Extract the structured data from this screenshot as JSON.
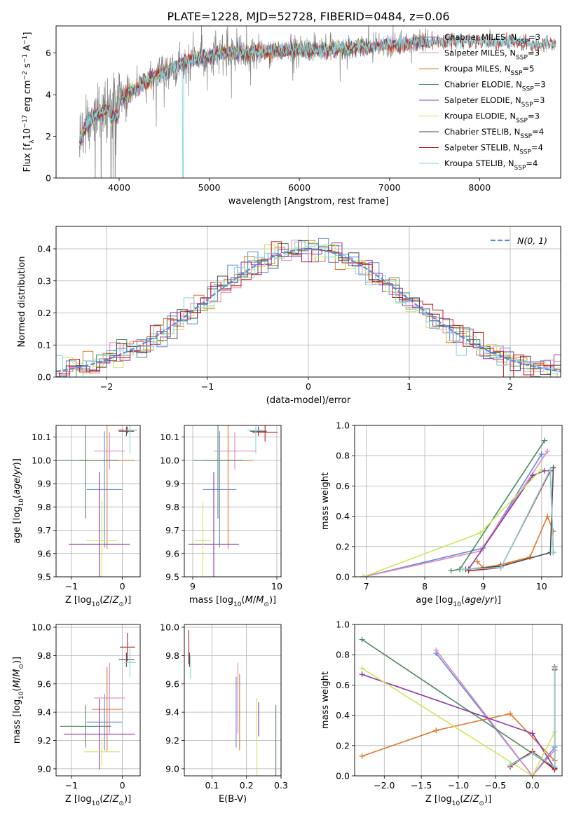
{
  "figure": {
    "title": "PLATE=1228, MJD=52728, FIBERID=0484, z=0.06"
  },
  "colors": {
    "Chabrier MILES": "#5b8bd8",
    "Salpeter MILES": "#e684bf",
    "Kroupa MILES": "#e0762a",
    "Chabrier ELODIE": "#4e8a5e",
    "Salpeter ELODIE": "#8e36a8",
    "Kroupa ELODIE": "#cfe65c",
    "Chabrier STELIB": "#4a4a4a",
    "Salpeter STELIB": "#c41818",
    "Kroupa STELIB": "#86d4dc",
    "data": "#808080",
    "normal": "#5b8bd8"
  },
  "chart_data": [
    {
      "id": "spectrum",
      "type": "line",
      "xlabel": "wavelength [Angstrom, rest frame]",
      "ylabel": "Flux [f_λ 10^-17 erg cm^-2 s^-1 A^-1]",
      "xlim": [
        3300,
        8900
      ],
      "ylim": [
        0,
        7.3
      ],
      "xticks": [
        4000,
        5000,
        6000,
        7000,
        8000
      ],
      "yticks": [
        0,
        2,
        4,
        6
      ],
      "grid": false,
      "legend_position": "right",
      "legend": [
        {
          "model": "Chabrier MILES",
          "nssp": "3"
        },
        {
          "model": "Salpeter MILES",
          "nssp": "3"
        },
        {
          "model": "Kroupa MILES",
          "nssp": "5"
        },
        {
          "model": "Chabrier ELODIE",
          "nssp": "3"
        },
        {
          "model": "Salpeter ELODIE",
          "nssp": "3"
        },
        {
          "model": "Kroupa ELODIE",
          "nssp": "3"
        },
        {
          "model": "Chabrier STELIB",
          "nssp": "4"
        },
        {
          "model": "Salpeter STELIB",
          "nssp": "4"
        },
        {
          "model": "Kroupa STELIB",
          "nssp": "4"
        }
      ],
      "continuum": {
        "x": [
          3560,
          3650,
          3750,
          3850,
          3950,
          4050,
          4150,
          4300,
          4500,
          4700,
          4900,
          5100,
          5300,
          5500,
          5700,
          5900,
          6100,
          6300,
          6500,
          6700,
          6900,
          7100,
          7300,
          7500,
          7700,
          8000,
          8300,
          8600,
          8850
        ],
        "y": [
          1.8,
          2.6,
          3.1,
          3.2,
          3.5,
          3.9,
          4.2,
          4.6,
          5.1,
          5.5,
          5.8,
          5.95,
          6.0,
          6.05,
          6.1,
          6.15,
          6.1,
          6.15,
          6.2,
          6.3,
          6.35,
          6.4,
          6.5,
          6.55,
          6.6,
          6.55,
          6.5,
          6.45,
          6.4
        ]
      }
    },
    {
      "id": "residuals",
      "type": "histogram",
      "xlabel": "(data-model)/error",
      "ylabel": "Normed distribution",
      "xlim": [
        -2.5,
        2.5
      ],
      "ylim": [
        0,
        0.47
      ],
      "xticks": [
        -2,
        -1,
        0,
        1,
        2
      ],
      "yticks": [
        0.0,
        0.1,
        0.2,
        0.3,
        0.4
      ],
      "grid": true,
      "legend_position": "top-right",
      "legend": "N(0,1)",
      "bin_width": 0.1
    },
    {
      "id": "age-vs-Z",
      "type": "errorbar",
      "xlabel": "Z [log10(Z/Z⊙)]",
      "ylabel": "age [log10(age/yr)]",
      "xlim": [
        -1.3,
        0.35
      ],
      "ylim": [
        9.5,
        10.15
      ],
      "xticks": [
        -1,
        0
      ],
      "yticks": [
        9.5,
        9.6,
        9.7,
        9.8,
        9.9,
        10.0,
        10.1
      ],
      "grid": true,
      "points": [
        {
          "model": "Chabrier MILES",
          "x": -0.35,
          "xerr": 0.35,
          "y": 9.875,
          "yerr": 0.25
        },
        {
          "model": "Salpeter MILES",
          "x": -0.25,
          "xerr": 0.3,
          "y": 10.04,
          "yerr": 0.08
        },
        {
          "model": "Kroupa MILES",
          "x": -0.3,
          "xerr": 0.55,
          "y": 10.0,
          "yerr": 0.38
        },
        {
          "model": "Chabrier ELODIE",
          "x": -0.72,
          "xerr": 0.65,
          "y": 10.0,
          "yerr": 0.25
        },
        {
          "model": "Salpeter ELODIE",
          "x": -0.45,
          "xerr": 0.6,
          "y": 9.64,
          "yerr": 0.31
        },
        {
          "model": "Kroupa ELODIE",
          "x": -0.4,
          "xerr": 0.3,
          "y": 9.655,
          "yerr": 0.17
        },
        {
          "model": "Chabrier STELIB",
          "x": 0.08,
          "xerr": 0.15,
          "y": 10.125,
          "yerr": 0.02
        },
        {
          "model": "Salpeter STELIB",
          "x": 0.1,
          "xerr": 0.18,
          "y": 10.13,
          "yerr": 0.015
        },
        {
          "model": "Kroupa STELIB",
          "x": 0.15,
          "xerr": 0.12,
          "y": 10.13,
          "yerr": 0.1
        }
      ]
    },
    {
      "id": "age-vs-mass",
      "type": "errorbar",
      "xlabel": "mass [log10(M/M⊙)]",
      "ylabel": "",
      "xlim": [
        8.9,
        10.05
      ],
      "ylim": [
        9.5,
        10.15
      ],
      "xticks": [
        9,
        10
      ],
      "yticks": [
        9.5,
        9.6,
        9.7,
        9.8,
        9.9,
        10.0,
        10.1
      ],
      "grid": true,
      "points": [
        {
          "model": "Chabrier MILES",
          "x": 9.32,
          "xerr": 0.2,
          "y": 9.875,
          "yerr": 0.25
        },
        {
          "model": "Salpeter MILES",
          "x": 9.5,
          "xerr": 0.25,
          "y": 10.04,
          "yerr": 0.08
        },
        {
          "model": "Kroupa MILES",
          "x": 9.42,
          "xerr": 0.3,
          "y": 10.0,
          "yerr": 0.38
        },
        {
          "model": "Chabrier ELODIE",
          "x": 9.3,
          "xerr": 0.3,
          "y": 10.0,
          "yerr": 0.25
        },
        {
          "model": "Salpeter ELODIE",
          "x": 9.25,
          "xerr": 0.3,
          "y": 9.64,
          "yerr": 0.31
        },
        {
          "model": "Kroupa ELODIE",
          "x": 9.12,
          "xerr": 0.1,
          "y": 9.655,
          "yerr": 0.17
        },
        {
          "model": "Chabrier STELIB",
          "x": 9.78,
          "xerr": 0.1,
          "y": 10.125,
          "yerr": 0.02
        },
        {
          "model": "Salpeter STELIB",
          "x": 9.86,
          "xerr": 0.15,
          "y": 10.12,
          "yerr": 0.04
        },
        {
          "model": "Kroupa STELIB",
          "x": 9.75,
          "xerr": 0.1,
          "y": 10.13,
          "yerr": 0.1
        }
      ]
    },
    {
      "id": "weight-vs-age",
      "type": "line",
      "xlabel": "age [log10(age/yr)]",
      "ylabel": "mass weight",
      "xlim": [
        6.8,
        10.35
      ],
      "ylim": [
        0,
        1.0
      ],
      "xticks": [
        7,
        8,
        9,
        10
      ],
      "yticks": [
        0.0,
        0.2,
        0.4,
        0.6,
        0.8,
        1.0
      ],
      "grid": true,
      "series": [
        {
          "model": "Chabrier MILES",
          "x": [
            6.95,
            9.0,
            10.0
          ],
          "y": [
            0.0,
            0.19,
            0.81
          ]
        },
        {
          "model": "Salpeter MILES",
          "x": [
            6.95,
            8.95,
            10.1
          ],
          "y": [
            0.0,
            0.17,
            0.83
          ]
        },
        {
          "model": "Kroupa MILES",
          "x": [
            8.9,
            9.0,
            9.3,
            9.8,
            10.1,
            10.2
          ],
          "y": [
            0.1,
            0.06,
            0.08,
            0.13,
            0.4,
            0.3
          ]
        },
        {
          "model": "Chabrier ELODIE",
          "x": [
            8.45,
            8.6,
            10.05
          ],
          "y": [
            0.04,
            0.05,
            0.9
          ]
        },
        {
          "model": "Salpeter ELODIE",
          "x": [
            8.75,
            9.85,
            10.05
          ],
          "y": [
            0.05,
            0.67,
            0.7
          ]
        },
        {
          "model": "Kroupa ELODIE",
          "x": [
            6.95,
            8.95,
            10.0
          ],
          "y": [
            0.0,
            0.29,
            0.71
          ]
        },
        {
          "model": "Chabrier STELIB",
          "x": [
            8.7,
            9.3,
            10.15,
            10.2
          ],
          "y": [
            0.05,
            0.07,
            0.16,
            0.72
          ]
        },
        {
          "model": "Salpeter STELIB",
          "x": [
            8.75,
            9.3,
            10.15,
            10.2
          ],
          "y": [
            0.04,
            0.06,
            0.7,
            0.16
          ]
        },
        {
          "model": "Kroupa STELIB",
          "x": [
            8.65,
            9.3,
            10.15,
            10.2
          ],
          "y": [
            0.05,
            0.06,
            0.71,
            0.16
          ]
        }
      ]
    },
    {
      "id": "mass-vs-Z",
      "type": "errorbar",
      "xlabel": "Z [log10(Z/Z⊙)]",
      "ylabel": "mass [log10(M/M⊙)]",
      "xlim": [
        -1.3,
        0.35
      ],
      "ylim": [
        8.95,
        10.02
      ],
      "xticks": [
        -1,
        0
      ],
      "yticks": [
        9.0,
        9.2,
        9.4,
        9.6,
        9.8,
        10.0
      ],
      "grid": true,
      "points": [
        {
          "model": "Chabrier MILES",
          "x": -0.35,
          "xerr": 0.35,
          "y": 9.33,
          "yerr": 0.2
        },
        {
          "model": "Salpeter MILES",
          "x": -0.25,
          "xerr": 0.3,
          "y": 9.5,
          "yerr": 0.25
        },
        {
          "model": "Kroupa MILES",
          "x": -0.3,
          "xerr": 0.3,
          "y": 9.42,
          "yerr": 0.3
        },
        {
          "model": "Chabrier ELODIE",
          "x": -0.72,
          "xerr": 0.5,
          "y": 9.3,
          "yerr": 0.15
        },
        {
          "model": "Salpeter ELODIE",
          "x": -0.45,
          "xerr": 0.7,
          "y": 9.245,
          "yerr": 0.25
        },
        {
          "model": "Kroupa ELODIE",
          "x": -0.4,
          "xerr": 0.35,
          "y": 9.12,
          "yerr": 0.1
        },
        {
          "model": "Chabrier STELIB",
          "x": 0.08,
          "xerr": 0.15,
          "y": 9.77,
          "yerr": 0.05
        },
        {
          "model": "Salpeter STELIB",
          "x": 0.1,
          "xerr": 0.15,
          "y": 9.86,
          "yerr": 0.1
        },
        {
          "model": "Kroupa STELIB",
          "x": 0.15,
          "xerr": 0.12,
          "y": 9.75,
          "yerr": 0.1
        }
      ]
    },
    {
      "id": "mass-vs-EBV",
      "type": "errorbar",
      "xlabel": "E(B-V)",
      "ylabel": "",
      "xlim": [
        0.02,
        0.3
      ],
      "ylim": [
        8.95,
        10.02
      ],
      "xticks": [
        0.1,
        0.2,
        0.3
      ],
      "yticks": [
        9.0,
        9.2,
        9.4,
        9.6,
        9.8,
        10.0
      ],
      "grid": true,
      "points": [
        {
          "model": "Chabrier MILES",
          "x": 0.17,
          "xerr": 0.001,
          "y": 9.4,
          "yerr": 0.25
        },
        {
          "model": "Salpeter MILES",
          "x": 0.175,
          "xerr": 0.001,
          "y": 9.5,
          "yerr": 0.25
        },
        {
          "model": "Kroupa MILES",
          "x": 0.18,
          "xerr": 0.001,
          "y": 9.4,
          "yerr": 0.27
        },
        {
          "model": "Chabrier ELODIE",
          "x": 0.285,
          "xerr": 0.001,
          "y": 9.2,
          "yerr": 0.25
        },
        {
          "model": "Salpeter ELODIE",
          "x": 0.235,
          "xerr": 0.001,
          "y": 9.35,
          "yerr": 0.12
        },
        {
          "model": "Kroupa ELODIE",
          "x": 0.23,
          "xerr": 0.001,
          "y": 9.2,
          "yerr": 0.3
        },
        {
          "model": "Chabrier STELIB",
          "x": 0.035,
          "xerr": 0.001,
          "y": 9.77,
          "yerr": 0.05
        },
        {
          "model": "Salpeter STELIB",
          "x": 0.033,
          "xerr": 0.001,
          "y": 9.86,
          "yerr": 0.12
        },
        {
          "model": "Kroupa STELIB",
          "x": 0.038,
          "xerr": 0.001,
          "y": 9.72,
          "yerr": 0.08
        }
      ]
    },
    {
      "id": "weight-vs-Z",
      "type": "line",
      "xlabel": "Z [log10(Z/Z⊙)]",
      "ylabel": "mass weight",
      "xlim": [
        -2.4,
        0.4
      ],
      "ylim": [
        0,
        1.0
      ],
      "xticks": [
        -2.0,
        -1.5,
        -1.0,
        -0.5,
        0.0
      ],
      "yticks": [
        0.0,
        0.2,
        0.4,
        0.6,
        0.8,
        1.0
      ],
      "grid": true,
      "series": [
        {
          "model": "Chabrier MILES",
          "x": [
            -1.3,
            0.0,
            0.3
          ],
          "y": [
            0.81,
            0.0,
            0.19
          ]
        },
        {
          "model": "Salpeter MILES",
          "x": [
            -1.3,
            0.0,
            0.3
          ],
          "y": [
            0.83,
            0.0,
            0.17
          ]
        },
        {
          "model": "Kroupa MILES",
          "x": [
            -2.3,
            -1.3,
            -0.3,
            0.3
          ],
          "y": [
            0.13,
            0.3,
            0.41,
            0.1
          ]
        },
        {
          "model": "Chabrier ELODIE",
          "x": [
            -2.3,
            0.3
          ],
          "y": [
            0.9,
            0.05
          ]
        },
        {
          "model": "Salpeter ELODIE",
          "x": [
            -2.3,
            0.0,
            0.3
          ],
          "y": [
            0.67,
            0.28,
            0.05
          ]
        },
        {
          "model": "Kroupa ELODIE",
          "x": [
            -2.3,
            0.0,
            0.3
          ],
          "y": [
            0.71,
            0.0,
            0.29
          ]
        },
        {
          "model": "Chabrier STELIB",
          "x": [
            -0.3,
            0.0,
            0.3,
            0.3
          ],
          "y": [
            0.07,
            0.16,
            0.05,
            0.72
          ]
        },
        {
          "model": "Salpeter STELIB",
          "x": [
            -0.3,
            0.0,
            0.3,
            0.3
          ],
          "y": [
            0.06,
            0.16,
            0.04,
            0.7
          ]
        },
        {
          "model": "Kroupa STELIB",
          "x": [
            -0.3,
            0.0,
            0.3,
            0.3
          ],
          "y": [
            0.07,
            0.15,
            0.06,
            0.71
          ]
        }
      ]
    }
  ]
}
